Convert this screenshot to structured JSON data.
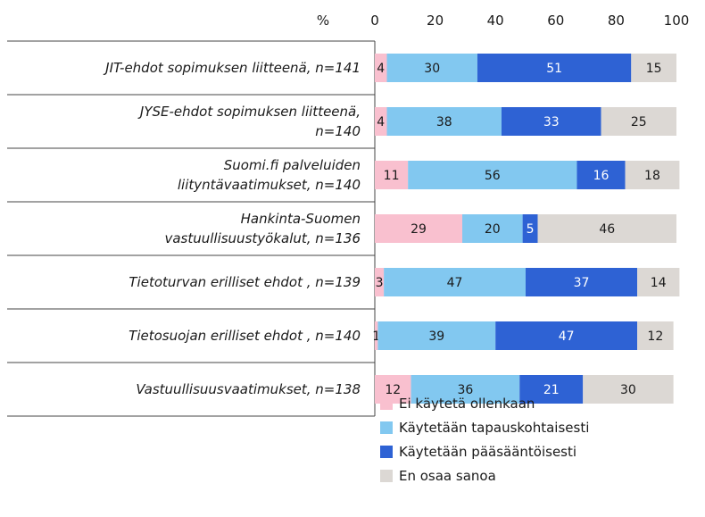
{
  "chart_data": {
    "type": "bar",
    "orientation": "horizontal",
    "stacked": true,
    "axis_unit_label": "%",
    "xlim": [
      0,
      100
    ],
    "x_ticks": [
      "0",
      "20",
      "40",
      "60",
      "80",
      "100"
    ],
    "categories": [
      [
        "JIT-ehdot sopimuksen liitteenä, n=141"
      ],
      [
        "JYSE-ehdot sopimuksen liitteenä,",
        "n=140"
      ],
      [
        "Suomi.fi palveluiden",
        "liityntävaatimukset, n=140"
      ],
      [
        "Hankinta-Suomen",
        "vastuullisuustyökalut, n=136"
      ],
      [
        "Tietoturvan erilliset ehdot , n=139"
      ],
      [
        "Tietosuojan erilliset ehdot , n=140"
      ],
      [
        "Vastuullisuusvaatimukset, n=138"
      ]
    ],
    "series": [
      {
        "name": "Ei käytetä ollenkaan",
        "color": "#f9c0cf",
        "label_color": "#1a1a1a",
        "values": [
          4,
          4,
          11,
          29,
          3,
          1,
          12
        ]
      },
      {
        "name": "Käytetään tapauskohtaisesti",
        "color": "#82c8f0",
        "label_color": "#1a1a1a",
        "values": [
          30,
          38,
          56,
          20,
          47,
          39,
          36
        ]
      },
      {
        "name": "Käytetään pääsääntöisesti",
        "color": "#2e62d4",
        "label_color": "#ffffff",
        "values": [
          51,
          33,
          16,
          5,
          37,
          47,
          21
        ]
      },
      {
        "name": "En osaa sanoa",
        "color": "#dcd8d4",
        "label_color": "#1a1a1a",
        "values": [
          15,
          25,
          18,
          46,
          14,
          12,
          30
        ]
      }
    ],
    "legend_position": "bottom"
  }
}
